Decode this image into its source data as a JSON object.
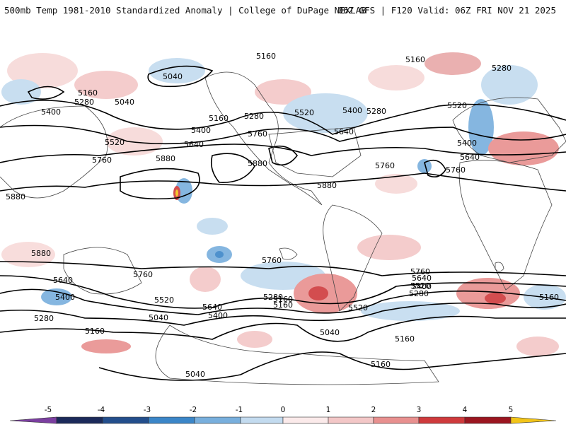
{
  "header": {
    "left_title": "500mb Temp 1981-2010 Standardized Anomaly | College of DuPage NEXLAB",
    "right_title": "06Z GFS | F120 Valid: 06Z FRI NOV 21 2025"
  },
  "contour_labels": [
    {
      "id": "c5160a",
      "text": "5160"
    },
    {
      "id": "c5040a",
      "text": "5040"
    },
    {
      "id": "c5160b",
      "text": "5160"
    },
    {
      "id": "c5280a",
      "text": "5280"
    },
    {
      "id": "c5040b",
      "text": "5040"
    },
    {
      "id": "c5400a",
      "text": "5400"
    },
    {
      "id": "c5160c",
      "text": "5160"
    },
    {
      "id": "c5280b",
      "text": "5280"
    },
    {
      "id": "c5520a",
      "text": "5520"
    },
    {
      "id": "c5400b",
      "text": "5400"
    },
    {
      "id": "c5520b",
      "text": "5520"
    },
    {
      "id": "c5400c",
      "text": "5400"
    },
    {
      "id": "c5280c",
      "text": "5280"
    },
    {
      "id": "c5160d",
      "text": "5160"
    },
    {
      "id": "c5280d",
      "text": "5280"
    },
    {
      "id": "c5520c",
      "text": "5520"
    },
    {
      "id": "c5760a",
      "text": "5760"
    },
    {
      "id": "c5640a",
      "text": "5640"
    },
    {
      "id": "c5640b",
      "text": "5640"
    },
    {
      "id": "c5400d",
      "text": "5400"
    },
    {
      "id": "c5760b",
      "text": "5760"
    },
    {
      "id": "c5880a",
      "text": "5880"
    },
    {
      "id": "c5880b",
      "text": "5880"
    },
    {
      "id": "c5760c",
      "text": "5760"
    },
    {
      "id": "c5760d",
      "text": "5760"
    },
    {
      "id": "c5640c",
      "text": "5640"
    },
    {
      "id": "c5880c",
      "text": "5880"
    },
    {
      "id": "c5880d",
      "text": "5880"
    },
    {
      "id": "c5880e",
      "text": "5880"
    },
    {
      "id": "c5760e",
      "text": "5760"
    },
    {
      "id": "c5760f",
      "text": "5760"
    },
    {
      "id": "c5640d",
      "text": "5640"
    },
    {
      "id": "c5400e",
      "text": "5400"
    },
    {
      "id": "c5280e",
      "text": "5280"
    },
    {
      "id": "c5520d",
      "text": "5520"
    },
    {
      "id": "c5640e",
      "text": "5640"
    },
    {
      "id": "c5400f",
      "text": "5400"
    },
    {
      "id": "c5280f",
      "text": "5280"
    },
    {
      "id": "c5160e",
      "text": "5160"
    },
    {
      "id": "c5040c",
      "text": "5040"
    },
    {
      "id": "c5160f",
      "text": "5160"
    },
    {
      "id": "c5520e",
      "text": "5520"
    },
    {
      "id": "c5760g",
      "text": "5760"
    },
    {
      "id": "c5640f",
      "text": "5640"
    },
    {
      "id": "c5520f",
      "text": "5520"
    },
    {
      "id": "c5400g",
      "text": "5400"
    },
    {
      "id": "c5280g",
      "text": "5280"
    },
    {
      "id": "c5160g",
      "text": "5160"
    },
    {
      "id": "c5040d",
      "text": "5040"
    },
    {
      "id": "c5160h",
      "text": "5160"
    },
    {
      "id": "c5160i",
      "text": "5160"
    },
    {
      "id": "c5040e",
      "text": "5040"
    },
    {
      "id": "c5160j",
      "text": "5160"
    }
  ],
  "colorbar": {
    "ticks": [
      "-5",
      "-4",
      "-3",
      "-2",
      "-1",
      "0",
      "1",
      "2",
      "3",
      "4",
      "5"
    ],
    "colors": {
      "below": "#7b3fa0",
      "-5": "#1b2a5a",
      "-4": "#234e8c",
      "-3": "#3b86c8",
      "-2": "#78afdd",
      "-1": "#c3dbef",
      "0a": "#edf3f9",
      "0b": "#fbeaea",
      "1": "#f3c7c7",
      "2": "#e8908f",
      "3": "#cf3a3c",
      "4": "#9b1620",
      "5": "#6b0a12",
      "above": "#f2c418"
    }
  }
}
